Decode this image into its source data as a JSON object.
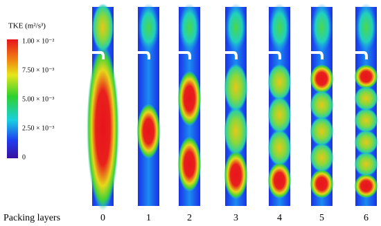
{
  "colorbar": {
    "title": "TKE  (m²/s³)",
    "ticks": [
      "1.00 × 10⁻²",
      "7.50 × 10⁻³",
      "5.00 × 10⁻³",
      "2.50 × 10⁻³",
      "0"
    ]
  },
  "x_axis": {
    "title": "Packing layers",
    "labels": [
      "0",
      "1",
      "2",
      "3",
      "4",
      "5",
      "6"
    ]
  }
}
